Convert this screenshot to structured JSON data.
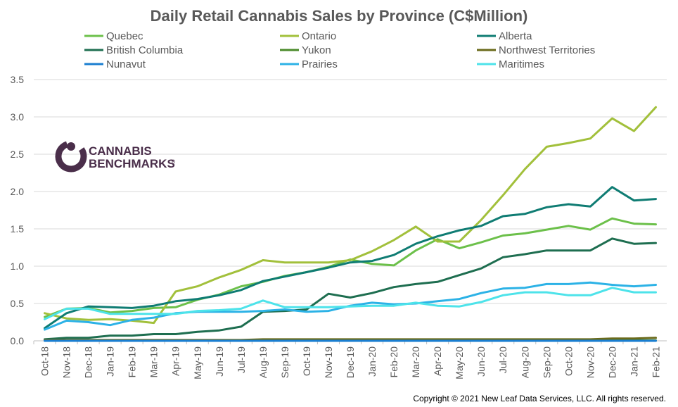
{
  "chart_data": {
    "type": "line",
    "title": "Daily Retail Cannabis Sales by Province (C$Million)",
    "xlabel": "",
    "ylabel": "",
    "ylim": [
      0,
      3.5
    ],
    "yticks": [
      "0.0",
      "0.5",
      "1.0",
      "1.5",
      "2.0",
      "2.5",
      "3.0",
      "3.5"
    ],
    "grid": "horizontal",
    "legend_position": "top",
    "categories": [
      "Oct-18",
      "Nov-18",
      "Dec-18",
      "Jan-19",
      "Feb-19",
      "Mar-19",
      "Apr-19",
      "May-19",
      "Jun-19",
      "Jul-19",
      "Aug-19",
      "Sep-19",
      "Oct-19",
      "Nov-19",
      "Dec-19",
      "Jan-20",
      "Feb-20",
      "Mar-20",
      "Apr-20",
      "May-20",
      "Jun-20",
      "Jul-20",
      "Aug-20",
      "Sep-20",
      "Oct-20",
      "Nov-20",
      "Dec-20",
      "Jan-21",
      "Feb-21"
    ],
    "series": [
      {
        "name": "Quebec",
        "color": "#6cc04a",
        "values": [
          0.32,
          0.43,
          0.44,
          0.38,
          0.4,
          0.44,
          0.45,
          0.55,
          0.62,
          0.73,
          0.79,
          0.87,
          0.92,
          0.99,
          1.09,
          1.03,
          1.01,
          1.21,
          1.36,
          1.24,
          1.32,
          1.41,
          1.44,
          1.49,
          1.54,
          1.49,
          1.64,
          1.57,
          1.56
        ]
      },
      {
        "name": "Ontario",
        "color": "#a2c03b",
        "values": [
          0.37,
          0.3,
          0.28,
          0.29,
          0.27,
          0.24,
          0.66,
          0.73,
          0.85,
          0.95,
          1.08,
          1.05,
          1.05,
          1.05,
          1.08,
          1.2,
          1.35,
          1.53,
          1.33,
          1.33,
          1.62,
          1.95,
          2.3,
          2.6,
          2.65,
          2.71,
          2.98,
          2.81,
          3.13
        ]
      },
      {
        "name": "Alberta",
        "color": "#0f7c73",
        "values": [
          0.17,
          0.37,
          0.46,
          0.45,
          0.44,
          0.47,
          0.53,
          0.56,
          0.61,
          0.68,
          0.8,
          0.86,
          0.92,
          0.98,
          1.05,
          1.07,
          1.15,
          1.3,
          1.4,
          1.48,
          1.54,
          1.67,
          1.7,
          1.79,
          1.83,
          1.8,
          2.06,
          1.88,
          1.9
        ]
      },
      {
        "name": "British Columbia",
        "color": "#1e6e50",
        "values": [
          0.02,
          0.04,
          0.04,
          0.07,
          0.07,
          0.09,
          0.09,
          0.12,
          0.14,
          0.19,
          0.39,
          0.4,
          0.42,
          0.63,
          0.58,
          0.64,
          0.72,
          0.76,
          0.79,
          0.88,
          0.97,
          1.12,
          1.16,
          1.21,
          1.21,
          1.21,
          1.37,
          1.3,
          1.31
        ]
      },
      {
        "name": "Yukon",
        "color": "#4a8a2a",
        "values": [
          0.005,
          0.005,
          0.005,
          0.005,
          0.005,
          0.005,
          0.005,
          0.005,
          0.005,
          0.005,
          0.005,
          0.005,
          0.005,
          0.005,
          0.005,
          0.005,
          0.005,
          0.005,
          0.005,
          0.005,
          0.005,
          0.005,
          0.005,
          0.005,
          0.005,
          0.005,
          0.005,
          0.005,
          0.005
        ]
      },
      {
        "name": "Northwest Territories",
        "color": "#6a6a1a",
        "values": [
          0.01,
          0.01,
          0.01,
          0.01,
          0.01,
          0.01,
          0.01,
          0.01,
          0.01,
          0.01,
          0.02,
          0.02,
          0.02,
          0.02,
          0.02,
          0.02,
          0.02,
          0.02,
          0.02,
          0.02,
          0.02,
          0.02,
          0.02,
          0.02,
          0.02,
          0.02,
          0.03,
          0.03,
          0.04
        ]
      },
      {
        "name": "Nunavut",
        "color": "#1a7ed0",
        "values": [
          0.0,
          0.0,
          0.0,
          0.0,
          0.0,
          0.0,
          0.0,
          0.0,
          0.0,
          0.0,
          0.0,
          0.0,
          0.0,
          0.0,
          0.0,
          0.0,
          0.0,
          0.0,
          0.0,
          0.0,
          0.0,
          0.0,
          0.0,
          0.0,
          0.0,
          0.0,
          0.0,
          0.0,
          0.0
        ]
      },
      {
        "name": "Prairies",
        "color": "#2cb2e6",
        "values": [
          0.15,
          0.27,
          0.25,
          0.21,
          0.28,
          0.31,
          0.37,
          0.39,
          0.39,
          0.39,
          0.4,
          0.42,
          0.39,
          0.4,
          0.47,
          0.51,
          0.49,
          0.5,
          0.53,
          0.56,
          0.64,
          0.7,
          0.71,
          0.76,
          0.76,
          0.78,
          0.75,
          0.73,
          0.75
        ]
      },
      {
        "name": "Maritimes",
        "color": "#4de3ea",
        "values": [
          0.29,
          0.43,
          0.43,
          0.36,
          0.36,
          0.36,
          0.36,
          0.4,
          0.41,
          0.43,
          0.54,
          0.45,
          0.45,
          0.45,
          0.46,
          0.47,
          0.47,
          0.51,
          0.47,
          0.46,
          0.52,
          0.61,
          0.65,
          0.65,
          0.61,
          0.61,
          0.71,
          0.65,
          0.65
        ]
      }
    ]
  },
  "logo": {
    "line1": "CANNABIS",
    "line2": "BENCHMARKS",
    "mark": "®",
    "color": "#4a2e4a"
  },
  "copyright": "Copyright © 2021 New Leaf Data Services, LLC. All rights reserved."
}
